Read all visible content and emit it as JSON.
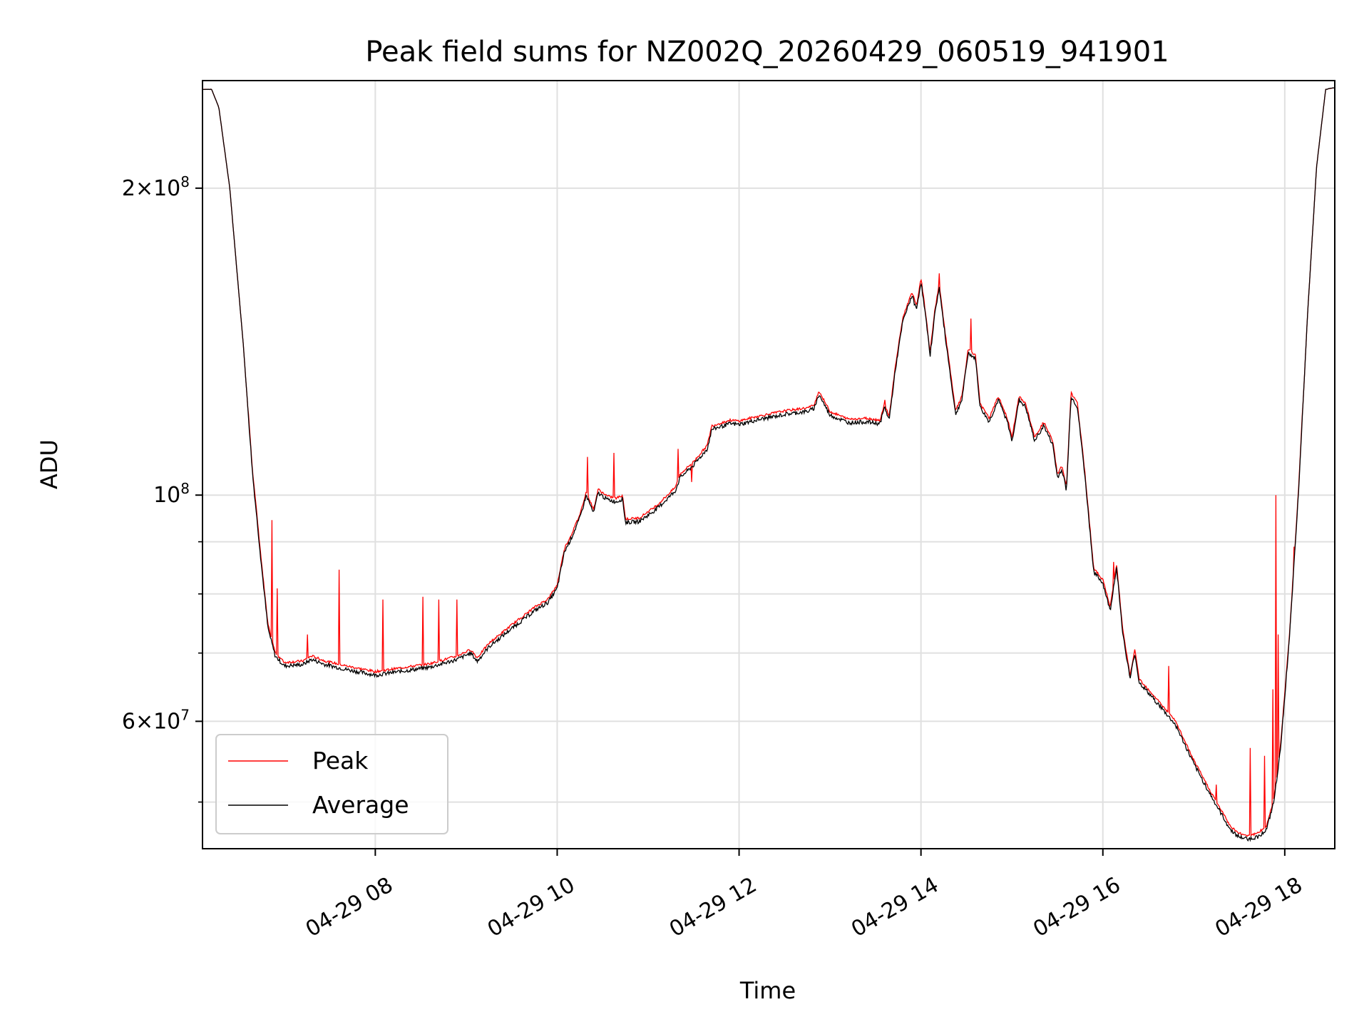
{
  "chart_data": {
    "type": "line",
    "title": "Peak field sums for NZ002Q_20260429_060519_941901",
    "xlabel": "Time",
    "ylabel": "ADU",
    "yscale": "log",
    "ylim": [
      45000000,
      255000000
    ],
    "xlim": [
      6.1,
      18.55
    ],
    "grid": true,
    "legend_position": "lower-left",
    "x_ticks": [
      {
        "value": 8,
        "label": "04-29 08"
      },
      {
        "value": 10,
        "label": "04-29 10"
      },
      {
        "value": 12,
        "label": "04-29 12"
      },
      {
        "value": 14,
        "label": "04-29 14"
      },
      {
        "value": 16,
        "label": "04-29 16"
      },
      {
        "value": 18,
        "label": "04-29 18"
      }
    ],
    "y_major_ticks": [
      {
        "value": 200000000,
        "mantissa": "2",
        "exponent": "8"
      },
      {
        "value": 100000000,
        "mantissa": "",
        "exponent": "8"
      },
      {
        "value": 60000000,
        "mantissa": "6",
        "exponent": "7"
      }
    ],
    "y_minor_ticks": [
      50000000,
      70000000,
      80000000,
      90000000
    ],
    "series": [
      {
        "name": "Peak",
        "color": "#ff0000",
        "offset_ratio": 1.008,
        "spikes": [
          [
            6.7,
            96000000
          ],
          [
            6.86,
            94500000
          ],
          [
            6.92,
            81000000
          ],
          [
            7.25,
            73000000
          ],
          [
            7.6,
            84500000
          ],
          [
            8.08,
            79000000
          ],
          [
            8.52,
            79500000
          ],
          [
            8.7,
            79000000
          ],
          [
            8.9,
            79000000
          ],
          [
            10.33,
            109000000
          ],
          [
            10.62,
            110000000
          ],
          [
            11.33,
            111000000
          ],
          [
            11.48,
            103000000
          ],
          [
            13.6,
            124000000
          ],
          [
            14.2,
            165000000
          ],
          [
            14.55,
            149000000
          ],
          [
            16.12,
            86000000
          ],
          [
            16.72,
            68000000
          ],
          [
            17.25,
            52000000
          ],
          [
            17.62,
            56500000
          ],
          [
            17.78,
            55500000
          ],
          [
            17.87,
            64500000
          ],
          [
            17.9,
            100000000
          ],
          [
            17.93,
            73000000
          ],
          [
            18.1,
            89000000
          ]
        ]
      },
      {
        "name": "Average",
        "color": "#000000",
        "points": [
          [
            6.1,
            250000000
          ],
          [
            6.2,
            250000000
          ],
          [
            6.28,
            240000000
          ],
          [
            6.4,
            200000000
          ],
          [
            6.55,
            140000000
          ],
          [
            6.65,
            105000000
          ],
          [
            6.75,
            85000000
          ],
          [
            6.82,
            74000000
          ],
          [
            6.9,
            69500000
          ],
          [
            7.0,
            68000000
          ],
          [
            7.2,
            68200000
          ],
          [
            7.3,
            69000000
          ],
          [
            7.45,
            68200000
          ],
          [
            7.7,
            67400000
          ],
          [
            8.0,
            66600000
          ],
          [
            8.3,
            67200000
          ],
          [
            8.6,
            67800000
          ],
          [
            8.9,
            69000000
          ],
          [
            9.05,
            70000000
          ],
          [
            9.12,
            68700000
          ],
          [
            9.25,
            71000000
          ],
          [
            9.5,
            74000000
          ],
          [
            9.75,
            77000000
          ],
          [
            9.9,
            78500000
          ],
          [
            10.0,
            81000000
          ],
          [
            10.08,
            88000000
          ],
          [
            10.15,
            90500000
          ],
          [
            10.25,
            95000000
          ],
          [
            10.32,
            100000000
          ],
          [
            10.4,
            96000000
          ],
          [
            10.45,
            100500000
          ],
          [
            10.55,
            99000000
          ],
          [
            10.65,
            98500000
          ],
          [
            10.72,
            99200000
          ],
          [
            10.75,
            94000000
          ],
          [
            10.9,
            94200000
          ],
          [
            11.1,
            97000000
          ],
          [
            11.3,
            101000000
          ],
          [
            11.35,
            104000000
          ],
          [
            11.5,
            107000000
          ],
          [
            11.65,
            111000000
          ],
          [
            11.7,
            116000000
          ],
          [
            11.9,
            117500000
          ],
          [
            12.0,
            117300000
          ],
          [
            12.2,
            118500000
          ],
          [
            12.5,
            120000000
          ],
          [
            12.75,
            120800000
          ],
          [
            12.82,
            121500000
          ],
          [
            12.88,
            125500000
          ],
          [
            12.92,
            123500000
          ],
          [
            13.0,
            119800000
          ],
          [
            13.2,
            117800000
          ],
          [
            13.4,
            118000000
          ],
          [
            13.55,
            117500000
          ],
          [
            13.6,
            122000000
          ],
          [
            13.65,
            118500000
          ],
          [
            13.72,
            133000000
          ],
          [
            13.8,
            148000000
          ],
          [
            13.9,
            157000000
          ],
          [
            13.95,
            152000000
          ],
          [
            14.0,
            162000000
          ],
          [
            14.05,
            150000000
          ],
          [
            14.1,
            137000000
          ],
          [
            14.15,
            150000000
          ],
          [
            14.2,
            160000000
          ],
          [
            14.25,
            147000000
          ],
          [
            14.3,
            136000000
          ],
          [
            14.38,
            120000000
          ],
          [
            14.45,
            124000000
          ],
          [
            14.52,
            138000000
          ],
          [
            14.6,
            136000000
          ],
          [
            14.65,
            122000000
          ],
          [
            14.75,
            118000000
          ],
          [
            14.85,
            124000000
          ],
          [
            14.95,
            118000000
          ],
          [
            15.0,
            113000000
          ],
          [
            15.08,
            124000000
          ],
          [
            15.15,
            122000000
          ],
          [
            15.25,
            113000000
          ],
          [
            15.35,
            117000000
          ],
          [
            15.45,
            112000000
          ],
          [
            15.5,
            104000000
          ],
          [
            15.55,
            106000000
          ],
          [
            15.6,
            101000000
          ],
          [
            15.65,
            125000000
          ],
          [
            15.72,
            122000000
          ],
          [
            15.8,
            105000000
          ],
          [
            15.9,
            84000000
          ],
          [
            16.0,
            82000000
          ],
          [
            16.08,
            77000000
          ],
          [
            16.15,
            85000000
          ],
          [
            16.22,
            73000000
          ],
          [
            16.3,
            66000000
          ],
          [
            16.35,
            70000000
          ],
          [
            16.4,
            65500000
          ],
          [
            16.6,
            62500000
          ],
          [
            16.8,
            59500000
          ],
          [
            17.0,
            54500000
          ],
          [
            17.2,
            50500000
          ],
          [
            17.4,
            47000000
          ],
          [
            17.5,
            46200000
          ],
          [
            17.6,
            46000000
          ],
          [
            17.7,
            46200000
          ],
          [
            17.8,
            47000000
          ],
          [
            17.88,
            50000000
          ],
          [
            17.95,
            56000000
          ],
          [
            18.05,
            72000000
          ],
          [
            18.15,
            100000000
          ],
          [
            18.25,
            150000000
          ],
          [
            18.35,
            210000000
          ],
          [
            18.45,
            250000000
          ],
          [
            18.55,
            251000000
          ]
        ]
      }
    ]
  }
}
